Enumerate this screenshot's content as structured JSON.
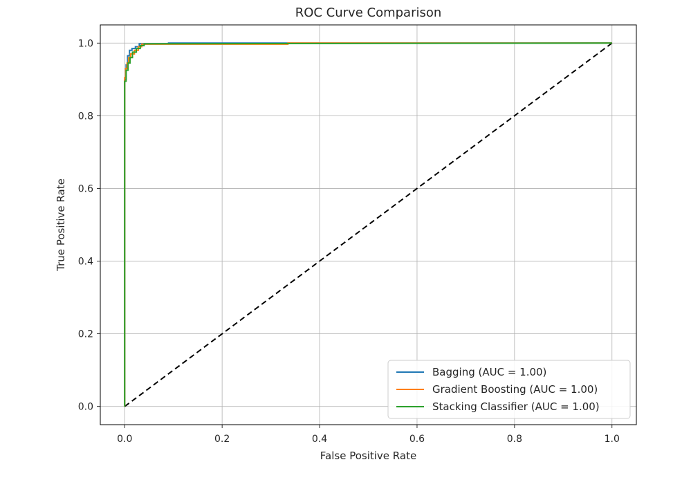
{
  "chart_data": {
    "type": "line",
    "title": "ROC Curve Comparison",
    "xlabel": "False Positive Rate",
    "ylabel": "True Positive Rate",
    "xlim": [
      -0.05,
      1.05
    ],
    "ylim": [
      -0.05,
      1.05
    ],
    "xticks": [
      0.0,
      0.2,
      0.4,
      0.6,
      0.8,
      1.0
    ],
    "xtick_labels": [
      "0.0",
      "0.2",
      "0.4",
      "0.6",
      "0.8",
      "1.0"
    ],
    "yticks": [
      0.0,
      0.2,
      0.4,
      0.6,
      0.8,
      1.0
    ],
    "ytick_labels": [
      "0.0",
      "0.2",
      "0.4",
      "0.6",
      "0.8",
      "1.0"
    ],
    "grid": true,
    "legend_position": "lower-right",
    "series": [
      {
        "name": "Bagging (AUC = 1.00)",
        "color": "#1f77b4",
        "x": [
          0.0,
          0.0,
          0.003,
          0.003,
          0.006,
          0.006,
          0.01,
          0.01,
          0.015,
          0.015,
          0.022,
          0.022,
          0.03,
          0.03,
          0.04,
          0.09,
          0.09,
          1.0
        ],
        "y": [
          0.0,
          0.9,
          0.9,
          0.94,
          0.94,
          0.965,
          0.965,
          0.98,
          0.98,
          0.985,
          0.985,
          0.99,
          0.99,
          0.998,
          0.998,
          0.998,
          1.0,
          1.0
        ]
      },
      {
        "name": "Gradient Boosting (AUC = 1.00)",
        "color": "#ff7f0e",
        "x": [
          0.0,
          0.0,
          0.002,
          0.002,
          0.005,
          0.005,
          0.008,
          0.008,
          0.012,
          0.012,
          0.02,
          0.02,
          0.028,
          0.028,
          0.035,
          0.035,
          0.335,
          0.335,
          1.0
        ],
        "y": [
          0.0,
          0.905,
          0.905,
          0.93,
          0.93,
          0.945,
          0.945,
          0.96,
          0.96,
          0.97,
          0.97,
          0.98,
          0.98,
          0.99,
          0.99,
          0.997,
          0.997,
          1.0,
          1.0
        ]
      },
      {
        "name": "Stacking Classifier (AUC = 1.00)",
        "color": "#2ca02c",
        "x": [
          0.0,
          0.0,
          0.003,
          0.003,
          0.007,
          0.007,
          0.011,
          0.011,
          0.016,
          0.016,
          0.024,
          0.024,
          0.032,
          0.032,
          0.04,
          0.04,
          1.0
        ],
        "y": [
          0.0,
          0.895,
          0.895,
          0.925,
          0.925,
          0.945,
          0.945,
          0.96,
          0.96,
          0.975,
          0.975,
          0.985,
          0.985,
          0.993,
          0.993,
          0.998,
          1.0
        ]
      }
    ],
    "reference_line": {
      "x": [
        0.0,
        1.0
      ],
      "y": [
        0.0,
        1.0
      ],
      "color": "#000000",
      "style": "dashed"
    }
  }
}
